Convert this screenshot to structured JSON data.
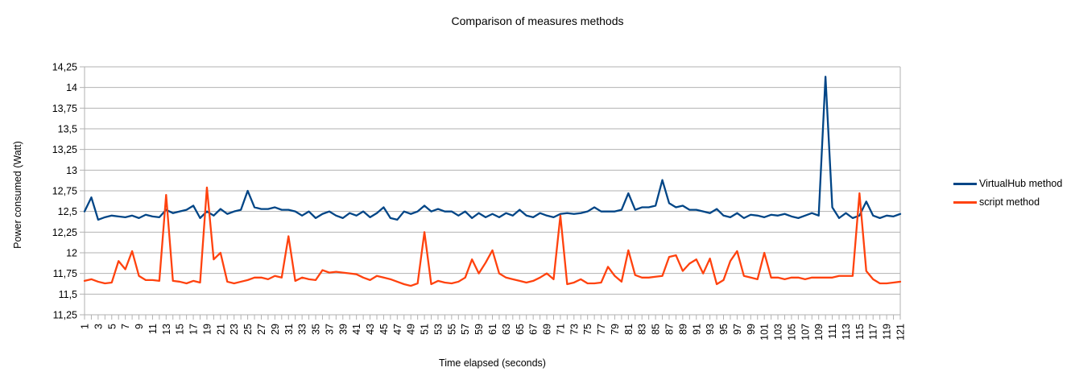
{
  "chart_data": {
    "type": "line",
    "title": "Comparison of measures methods",
    "xlabel": "Time elapsed (seconds)",
    "ylabel": "Power consumed (Watt)",
    "x_range": [
      1,
      121
    ],
    "ylim": [
      11.25,
      14.25
    ],
    "grid": "horizontal",
    "legend_position": "right",
    "background": "#FFFFFF",
    "axis_color": "#B2B2B2",
    "ytick_values": [
      14.25,
      14,
      13.75,
      13.5,
      13.25,
      13,
      12.75,
      12.5,
      12.25,
      12,
      11.75,
      11.5,
      11.25
    ],
    "ytick_labels": [
      "14,25",
      "14",
      "13,75",
      "13,5",
      "13,25",
      "13",
      "12,75",
      "12,5",
      "12,25",
      "12",
      "11,75",
      "11,5",
      "11,25"
    ],
    "xtick_labels": [
      "1",
      "3",
      "5",
      "7",
      "9",
      "11",
      "13",
      "15",
      "17",
      "19",
      "21",
      "23",
      "25",
      "27",
      "29",
      "31",
      "33",
      "35",
      "37",
      "39",
      "41",
      "43",
      "45",
      "47",
      "49",
      "51",
      "53",
      "55",
      "57",
      "59",
      "61",
      "63",
      "65",
      "67",
      "69",
      "71",
      "73",
      "75",
      "77",
      "79",
      "81",
      "83",
      "85",
      "87",
      "89",
      "91",
      "93",
      "95",
      "97",
      "99",
      "101",
      "103",
      "105",
      "107",
      "109",
      "111",
      "113",
      "115",
      "117",
      "119",
      "121"
    ],
    "series": [
      {
        "name": "VirtualHub method",
        "color": "#004586",
        "values": [
          12.5,
          12.67,
          12.4,
          12.43,
          12.45,
          12.44,
          12.43,
          12.45,
          12.42,
          12.46,
          12.44,
          12.43,
          12.52,
          12.48,
          12.5,
          12.52,
          12.57,
          12.42,
          12.5,
          12.45,
          12.53,
          12.47,
          12.5,
          12.52,
          12.75,
          12.55,
          12.53,
          12.53,
          12.55,
          12.52,
          12.52,
          12.5,
          12.45,
          12.5,
          12.42,
          12.47,
          12.5,
          12.45,
          12.42,
          12.48,
          12.45,
          12.5,
          12.43,
          12.48,
          12.55,
          12.42,
          12.4,
          12.5,
          12.47,
          12.5,
          12.57,
          12.5,
          12.53,
          12.5,
          12.5,
          12.45,
          12.5,
          12.42,
          12.48,
          12.43,
          12.47,
          12.43,
          12.48,
          12.45,
          12.52,
          12.45,
          12.43,
          12.48,
          12.45,
          12.43,
          12.47,
          12.48,
          12.47,
          12.48,
          12.5,
          12.55,
          12.5,
          12.5,
          12.5,
          12.52,
          12.72,
          12.52,
          12.55,
          12.55,
          12.57,
          12.88,
          12.6,
          12.55,
          12.57,
          12.52,
          12.52,
          12.5,
          12.48,
          12.53,
          12.45,
          12.43,
          12.48,
          12.42,
          12.46,
          12.45,
          12.43,
          12.46,
          12.45,
          12.47,
          12.44,
          12.42,
          12.45,
          12.48,
          12.45,
          14.13,
          12.55,
          12.42,
          12.48,
          12.42,
          12.45,
          12.62,
          12.45,
          12.42,
          12.45,
          12.44,
          12.47
        ]
      },
      {
        "name": "script method",
        "color": "#FF420E",
        "values": [
          11.66,
          11.68,
          11.65,
          11.63,
          11.64,
          11.9,
          11.8,
          12.02,
          11.72,
          11.67,
          11.67,
          11.66,
          12.7,
          11.66,
          11.65,
          11.63,
          11.66,
          11.64,
          12.79,
          11.92,
          12.0,
          11.65,
          11.63,
          11.65,
          11.67,
          11.7,
          11.7,
          11.68,
          11.72,
          11.7,
          12.2,
          11.66,
          11.7,
          11.68,
          11.67,
          11.79,
          11.76,
          11.77,
          11.76,
          11.75,
          11.74,
          11.7,
          11.67,
          11.72,
          11.7,
          11.68,
          11.65,
          11.62,
          11.6,
          11.63,
          12.25,
          11.62,
          11.66,
          11.64,
          11.63,
          11.65,
          11.7,
          11.92,
          11.75,
          11.88,
          12.03,
          11.75,
          11.7,
          11.68,
          11.66,
          11.64,
          11.66,
          11.7,
          11.75,
          11.68,
          12.45,
          11.62,
          11.64,
          11.68,
          11.63,
          11.63,
          11.64,
          11.83,
          11.72,
          11.65,
          12.03,
          11.73,
          11.7,
          11.7,
          11.71,
          11.72,
          11.95,
          11.97,
          11.78,
          11.87,
          11.92,
          11.75,
          11.93,
          11.62,
          11.67,
          11.9,
          12.02,
          11.72,
          11.7,
          11.68,
          12.0,
          11.7,
          11.7,
          11.68,
          11.7,
          11.7,
          11.68,
          11.7,
          11.7,
          11.7,
          11.7,
          11.72,
          11.72,
          11.72,
          12.72,
          11.78,
          11.68,
          11.63,
          11.63,
          11.64,
          11.65
        ]
      }
    ]
  }
}
